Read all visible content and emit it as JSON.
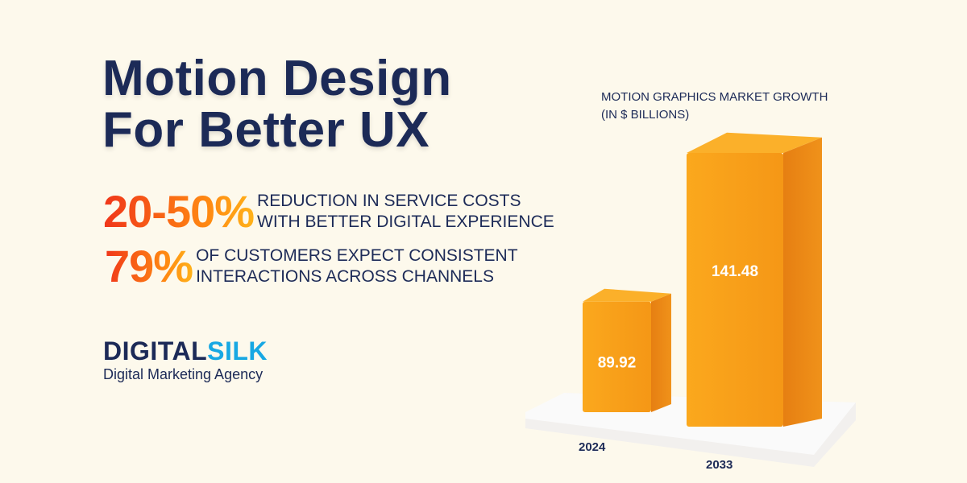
{
  "headline": {
    "line1": "Motion Design",
    "line2": "For Better UX"
  },
  "stats": [
    {
      "value": "20-50%",
      "line1": "REDUCTION IN SERVICE COSTS",
      "line2": "WITH BETTER DIGITAL EXPERIENCE"
    },
    {
      "value": "79%",
      "line1": "OF CUSTOMERS EXPECT CONSISTENT",
      "line2": "INTERACTIONS ACROSS CHANNELS"
    }
  ],
  "brand": {
    "logo_part1": "DIGITAL",
    "logo_part2": "SILK",
    "tagline": "Digital Marketing Agency"
  },
  "colors": {
    "navy": "#1c2a57",
    "orange": "#f7a21b",
    "accent_red": "#f0361a",
    "logo_blue": "#18a8e3",
    "background": "#fdf9ec"
  },
  "chart_data": {
    "type": "bar",
    "title": "MOTION GRAPHICS MARKET GROWTH",
    "subtitle": "(IN $ BILLIONS)",
    "categories": [
      "2024",
      "2033"
    ],
    "values": [
      89.92,
      141.48
    ],
    "data_labels": [
      "89.92",
      "141.48"
    ],
    "style": "3d",
    "grid": false
  }
}
